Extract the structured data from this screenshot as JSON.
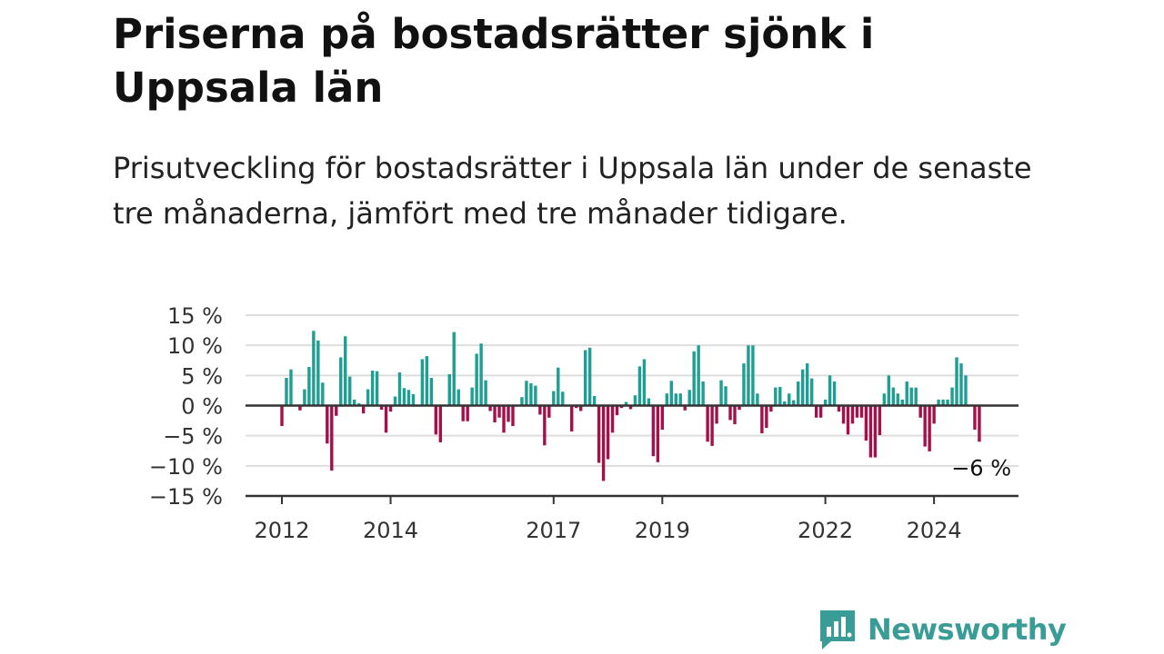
{
  "title": "Priserna på bostadsrätter sjönk i Uppsala län",
  "subtitle": "Prisutveckling för bostadsrätter i Uppsala län under de senaste tre månaderna, jämfört med tre månader tidigare.",
  "brand": {
    "name": "Newsworthy",
    "color": "#3a9c96"
  },
  "colors": {
    "positive": "#1f9e93",
    "negative": "#a3104a",
    "grid": "#dddddd",
    "axis": "#333333"
  },
  "chart_data": {
    "type": "bar",
    "y_unit": "%",
    "ylim": [
      -15,
      15
    ],
    "yticks": [
      15,
      10,
      5,
      0,
      -5,
      -10,
      -15
    ],
    "ytick_labels": [
      "15 %",
      "10 %",
      "5 %",
      "0 %",
      "−5 %",
      "−10 %",
      "−15 %"
    ],
    "xticks": [
      {
        "date": "2012-01",
        "label": "2012"
      },
      {
        "date": "2014-01",
        "label": "2014"
      },
      {
        "date": "2017-01",
        "label": "2017"
      },
      {
        "date": "2019-01",
        "label": "2019"
      },
      {
        "date": "2022-01",
        "label": "2022"
      },
      {
        "date": "2024-01",
        "label": "2024"
      }
    ],
    "grid": true,
    "last_value_label": "−6 %",
    "x": [
      "2012-01",
      "2012-02",
      "2012-03",
      "2012-04",
      "2012-05",
      "2012-06",
      "2012-07",
      "2012-08",
      "2012-09",
      "2012-10",
      "2012-11",
      "2012-12",
      "2013-01",
      "2013-02",
      "2013-03",
      "2013-04",
      "2013-05",
      "2013-06",
      "2013-07",
      "2013-08",
      "2013-09",
      "2013-10",
      "2013-11",
      "2013-12",
      "2014-01",
      "2014-02",
      "2014-03",
      "2014-04",
      "2014-05",
      "2014-06",
      "2014-07",
      "2014-08",
      "2014-09",
      "2014-10",
      "2014-11",
      "2014-12",
      "2015-01",
      "2015-02",
      "2015-03",
      "2015-04",
      "2015-05",
      "2015-06",
      "2015-07",
      "2015-08",
      "2015-09",
      "2015-10",
      "2015-11",
      "2015-12",
      "2016-01",
      "2016-02",
      "2016-03",
      "2016-04",
      "2016-05",
      "2016-06",
      "2016-07",
      "2016-08",
      "2016-09",
      "2016-10",
      "2016-11",
      "2016-12",
      "2017-01",
      "2017-02",
      "2017-03",
      "2017-04",
      "2017-05",
      "2017-06",
      "2017-07",
      "2017-08",
      "2017-09",
      "2017-10",
      "2017-11",
      "2017-12",
      "2018-01",
      "2018-02",
      "2018-03",
      "2018-04",
      "2018-05",
      "2018-06",
      "2018-07",
      "2018-08",
      "2018-09",
      "2018-10",
      "2018-11",
      "2018-12",
      "2019-01",
      "2019-02",
      "2019-03",
      "2019-04",
      "2019-05",
      "2019-06",
      "2019-07",
      "2019-08",
      "2019-09",
      "2019-10",
      "2019-11",
      "2019-12",
      "2020-01",
      "2020-02",
      "2020-03",
      "2020-04",
      "2020-05",
      "2020-06",
      "2020-07",
      "2020-08",
      "2020-09",
      "2020-10",
      "2020-11",
      "2020-12",
      "2021-01",
      "2021-02",
      "2021-03",
      "2021-04",
      "2021-05",
      "2021-06",
      "2021-07",
      "2021-08",
      "2021-09",
      "2021-10",
      "2021-11",
      "2021-12",
      "2022-01",
      "2022-02",
      "2022-03",
      "2022-04",
      "2022-05",
      "2022-06",
      "2022-07",
      "2022-08",
      "2022-09",
      "2022-10",
      "2022-11",
      "2022-12",
      "2023-01",
      "2023-02",
      "2023-03",
      "2023-04",
      "2023-05",
      "2023-06",
      "2023-07",
      "2023-08",
      "2023-09",
      "2023-10",
      "2023-11",
      "2023-12",
      "2024-01",
      "2024-02",
      "2024-03",
      "2024-04",
      "2024-05",
      "2024-06",
      "2024-07",
      "2024-08",
      "2024-09",
      "2024-10",
      "2024-11"
    ],
    "values": [
      -3.4,
      4.6,
      6.0,
      0,
      -0.8,
      2.7,
      6.4,
      12.4,
      10.8,
      3.8,
      -6.3,
      -10.8,
      -1.7,
      8.0,
      11.5,
      4.8,
      1.0,
      0.4,
      -1.3,
      2.7,
      5.8,
      5.7,
      -0.7,
      -4.5,
      -1.0,
      1.5,
      5.5,
      2.9,
      2.6,
      1.9,
      0,
      7.7,
      8.2,
      4.6,
      -4.8,
      -6.1,
      0,
      5.2,
      12.2,
      2.7,
      -2.6,
      -2.6,
      3.0,
      8.6,
      10.3,
      4.2,
      -0.9,
      -2.8,
      -2.0,
      -4.5,
      -2.7,
      -3.4,
      0,
      1.4,
      4.1,
      3.7,
      3.3,
      -1.5,
      -6.6,
      -2.0,
      2.4,
      6.3,
      2.3,
      0,
      -4.3,
      -0.4,
      -0.9,
      9.2,
      9.6,
      1.6,
      -9.5,
      -12.5,
      -8.9,
      -4.5,
      -1.6,
      -0.4,
      0.6,
      -0.6,
      1.7,
      6.5,
      7.7,
      1.2,
      -8.4,
      -9.4,
      -4.0,
      2.0,
      4.1,
      2.0,
      2.0,
      -0.8,
      2.6,
      9.0,
      10.0,
      4.0,
      -6.0,
      -6.7,
      -3.0,
      4.2,
      3.2,
      -2.4,
      -3.1,
      -0.7,
      7.0,
      10.0,
      10.0,
      2.0,
      -4.6,
      -3.7,
      -1.0,
      3.0,
      3.1,
      0.7,
      2.0,
      0.9,
      4.0,
      6.0,
      7.0,
      4.5,
      -2.0,
      -2.0,
      1.0,
      5.0,
      4.0,
      -1.0,
      -3.0,
      -4.8,
      -3.0,
      -2.0,
      -2.0,
      -5.8,
      -8.6,
      -8.6,
      -4.9,
      2.0,
      5.0,
      3.0,
      2.0,
      1.0,
      4.0,
      3.0,
      3.0,
      -2.0,
      -6.8,
      -7.6,
      -3.0,
      1.0,
      1.0,
      1.0,
      3.0,
      8.0,
      7.0,
      5.0,
      0,
      -4.0,
      -6.0
    ]
  }
}
